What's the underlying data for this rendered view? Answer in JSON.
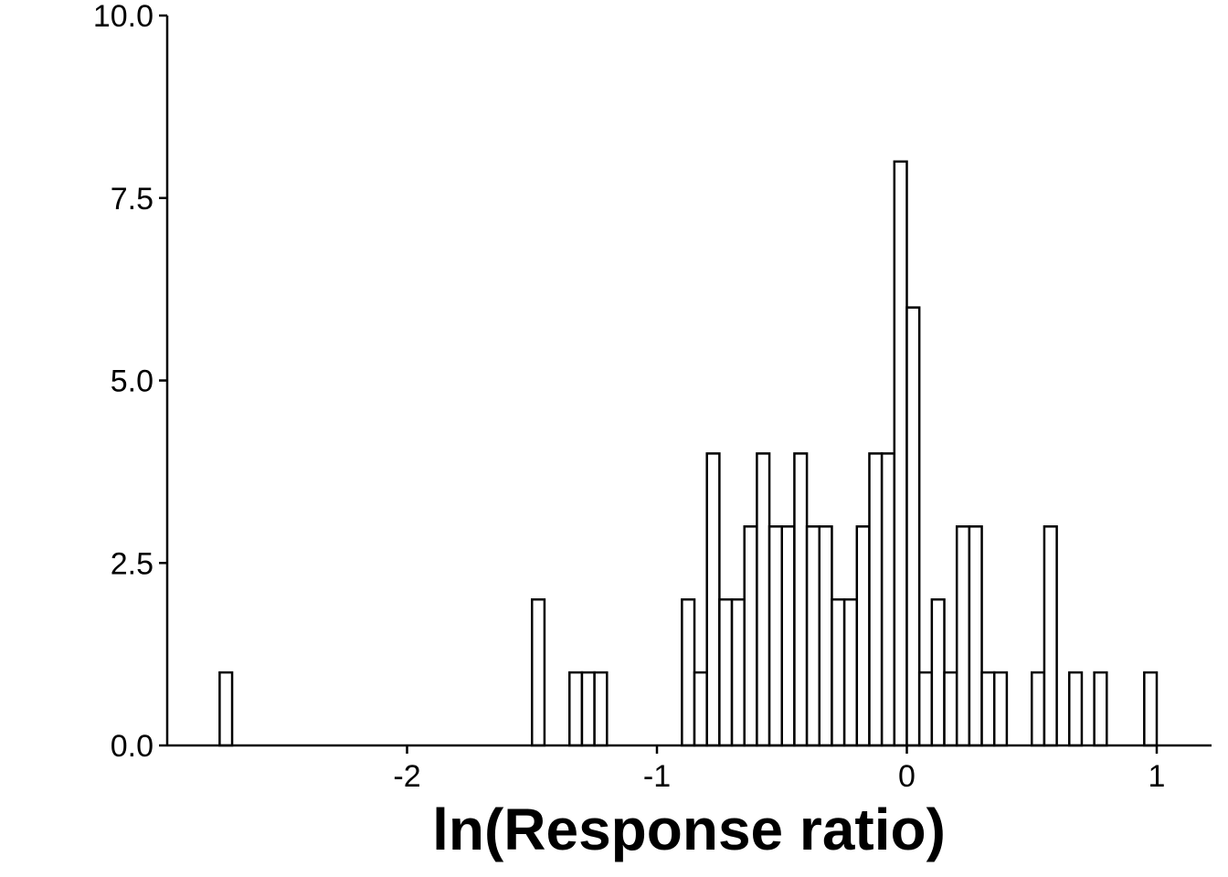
{
  "chart_data": {
    "type": "bar",
    "subtype": "histogram",
    "xlabel": "ln(Response ratio)",
    "ylabel": "",
    "xlim": [
      -2.9,
      1.2
    ],
    "ylim": [
      0,
      10
    ],
    "bin_width": 0.05,
    "x_ticks": [
      {
        "value": -2,
        "label": "-2"
      },
      {
        "value": -1,
        "label": "-1"
      },
      {
        "value": 0,
        "label": "0"
      },
      {
        "value": 1,
        "label": "1"
      }
    ],
    "y_ticks": [
      {
        "value": 0,
        "label": "0.0"
      },
      {
        "value": 2.5,
        "label": "2.5"
      },
      {
        "value": 5,
        "label": "5.0"
      },
      {
        "value": 7.5,
        "label": "7.5"
      },
      {
        "value": 10,
        "label": "10.0"
      }
    ],
    "bins": [
      {
        "x": -2.725,
        "count": 1
      },
      {
        "x": -1.475,
        "count": 2
      },
      {
        "x": -1.325,
        "count": 1
      },
      {
        "x": -1.275,
        "count": 1
      },
      {
        "x": -1.225,
        "count": 1
      },
      {
        "x": -0.875,
        "count": 2
      },
      {
        "x": -0.825,
        "count": 1
      },
      {
        "x": -0.775,
        "count": 4
      },
      {
        "x": -0.725,
        "count": 2
      },
      {
        "x": -0.675,
        "count": 2
      },
      {
        "x": -0.625,
        "count": 3
      },
      {
        "x": -0.575,
        "count": 4
      },
      {
        "x": -0.525,
        "count": 3
      },
      {
        "x": -0.475,
        "count": 3
      },
      {
        "x": -0.425,
        "count": 4
      },
      {
        "x": -0.375,
        "count": 3
      },
      {
        "x": -0.325,
        "count": 3
      },
      {
        "x": -0.275,
        "count": 2
      },
      {
        "x": -0.225,
        "count": 2
      },
      {
        "x": -0.175,
        "count": 3
      },
      {
        "x": -0.125,
        "count": 4
      },
      {
        "x": -0.075,
        "count": 4
      },
      {
        "x": -0.025,
        "count": 8
      },
      {
        "x": 0.025,
        "count": 6
      },
      {
        "x": 0.075,
        "count": 1
      },
      {
        "x": 0.125,
        "count": 2
      },
      {
        "x": 0.175,
        "count": 1
      },
      {
        "x": 0.225,
        "count": 3
      },
      {
        "x": 0.275,
        "count": 3
      },
      {
        "x": 0.325,
        "count": 1
      },
      {
        "x": 0.375,
        "count": 1
      },
      {
        "x": 0.525,
        "count": 1
      },
      {
        "x": 0.575,
        "count": 3
      },
      {
        "x": 0.675,
        "count": 1
      },
      {
        "x": 0.775,
        "count": 1
      },
      {
        "x": 0.975,
        "count": 1
      }
    ],
    "grid": false,
    "legend": "none"
  }
}
